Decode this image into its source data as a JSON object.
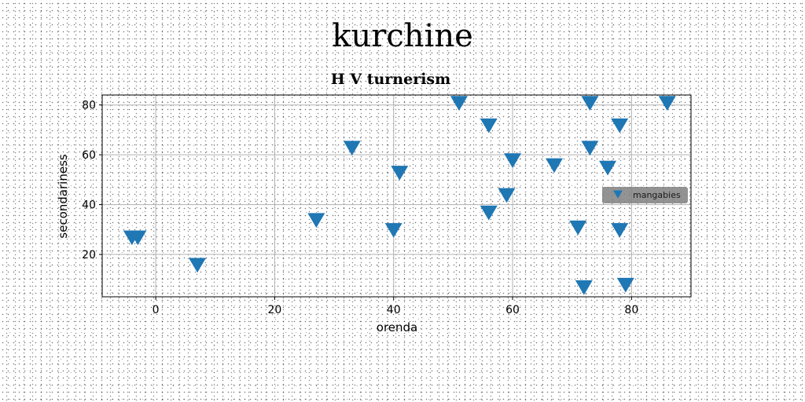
{
  "suptitle": "kurchine",
  "colors": {
    "marker": "#1f77b4",
    "grid": "#b0b0b0",
    "legend_bg": "#808080"
  },
  "chart_data": {
    "type": "scatter",
    "title": "H V turnerism",
    "xlabel": "orenda",
    "ylabel": "secondariness",
    "xlim": [
      -9,
      90
    ],
    "ylim": [
      3,
      84
    ],
    "xticks": [
      0,
      20,
      40,
      60,
      80
    ],
    "yticks": [
      20,
      40,
      60,
      80
    ],
    "grid": true,
    "legend_position": "center-right",
    "marker": "triangle-down",
    "series": [
      {
        "name": "mangabies",
        "points": [
          [
            -4,
            27
          ],
          [
            -3,
            27
          ],
          [
            7,
            16
          ],
          [
            27,
            34
          ],
          [
            33,
            63
          ],
          [
            40,
            30
          ],
          [
            41,
            53
          ],
          [
            51,
            81
          ],
          [
            56,
            72
          ],
          [
            56,
            37
          ],
          [
            59,
            44
          ],
          [
            60,
            58
          ],
          [
            67,
            56
          ],
          [
            71,
            31
          ],
          [
            72,
            7
          ],
          [
            73,
            81
          ],
          [
            73,
            63
          ],
          [
            76,
            55
          ],
          [
            78,
            72
          ],
          [
            78,
            30
          ],
          [
            79,
            8
          ],
          [
            86,
            81
          ]
        ]
      }
    ]
  }
}
